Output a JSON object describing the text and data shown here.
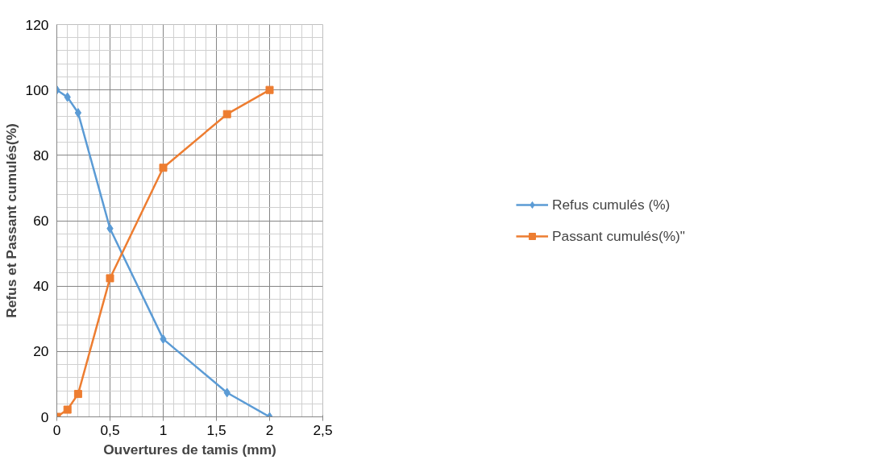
{
  "chart_data": {
    "type": "line",
    "xlabel": "Ouvertures de tamis (mm)",
    "ylabel": "Refus et Passant cumulés(%)",
    "xlim": [
      0,
      2.5
    ],
    "xticks": [
      0,
      {
        "value": 0.5,
        "label": "0,5"
      },
      1,
      {
        "value": 1.5,
        "label": "1,5"
      },
      2,
      {
        "value": 2.5,
        "label": "2,5"
      }
    ],
    "ylim": [
      0,
      120
    ],
    "yticks": [
      0,
      20,
      40,
      60,
      80,
      100,
      120
    ],
    "grid": true,
    "legend": "right",
    "series": [
      {
        "name": "Refus cumulés (%)",
        "color": "#5b9bd5",
        "marker": "diamond",
        "x": [
          0,
          0.1,
          0.2,
          0.5,
          1,
          1.6,
          2
        ],
        "values": [
          100,
          97.8,
          93,
          57.6,
          23.8,
          7.4,
          0
        ]
      },
      {
        "name": "Passant cumulés(%)\"",
        "color": "#ed7d31",
        "marker": "square",
        "x": [
          0,
          0.1,
          0.2,
          0.5,
          1,
          1.6,
          2
        ],
        "values": [
          0,
          2.2,
          7,
          42.4,
          76.2,
          92.6,
          100
        ]
      }
    ]
  }
}
